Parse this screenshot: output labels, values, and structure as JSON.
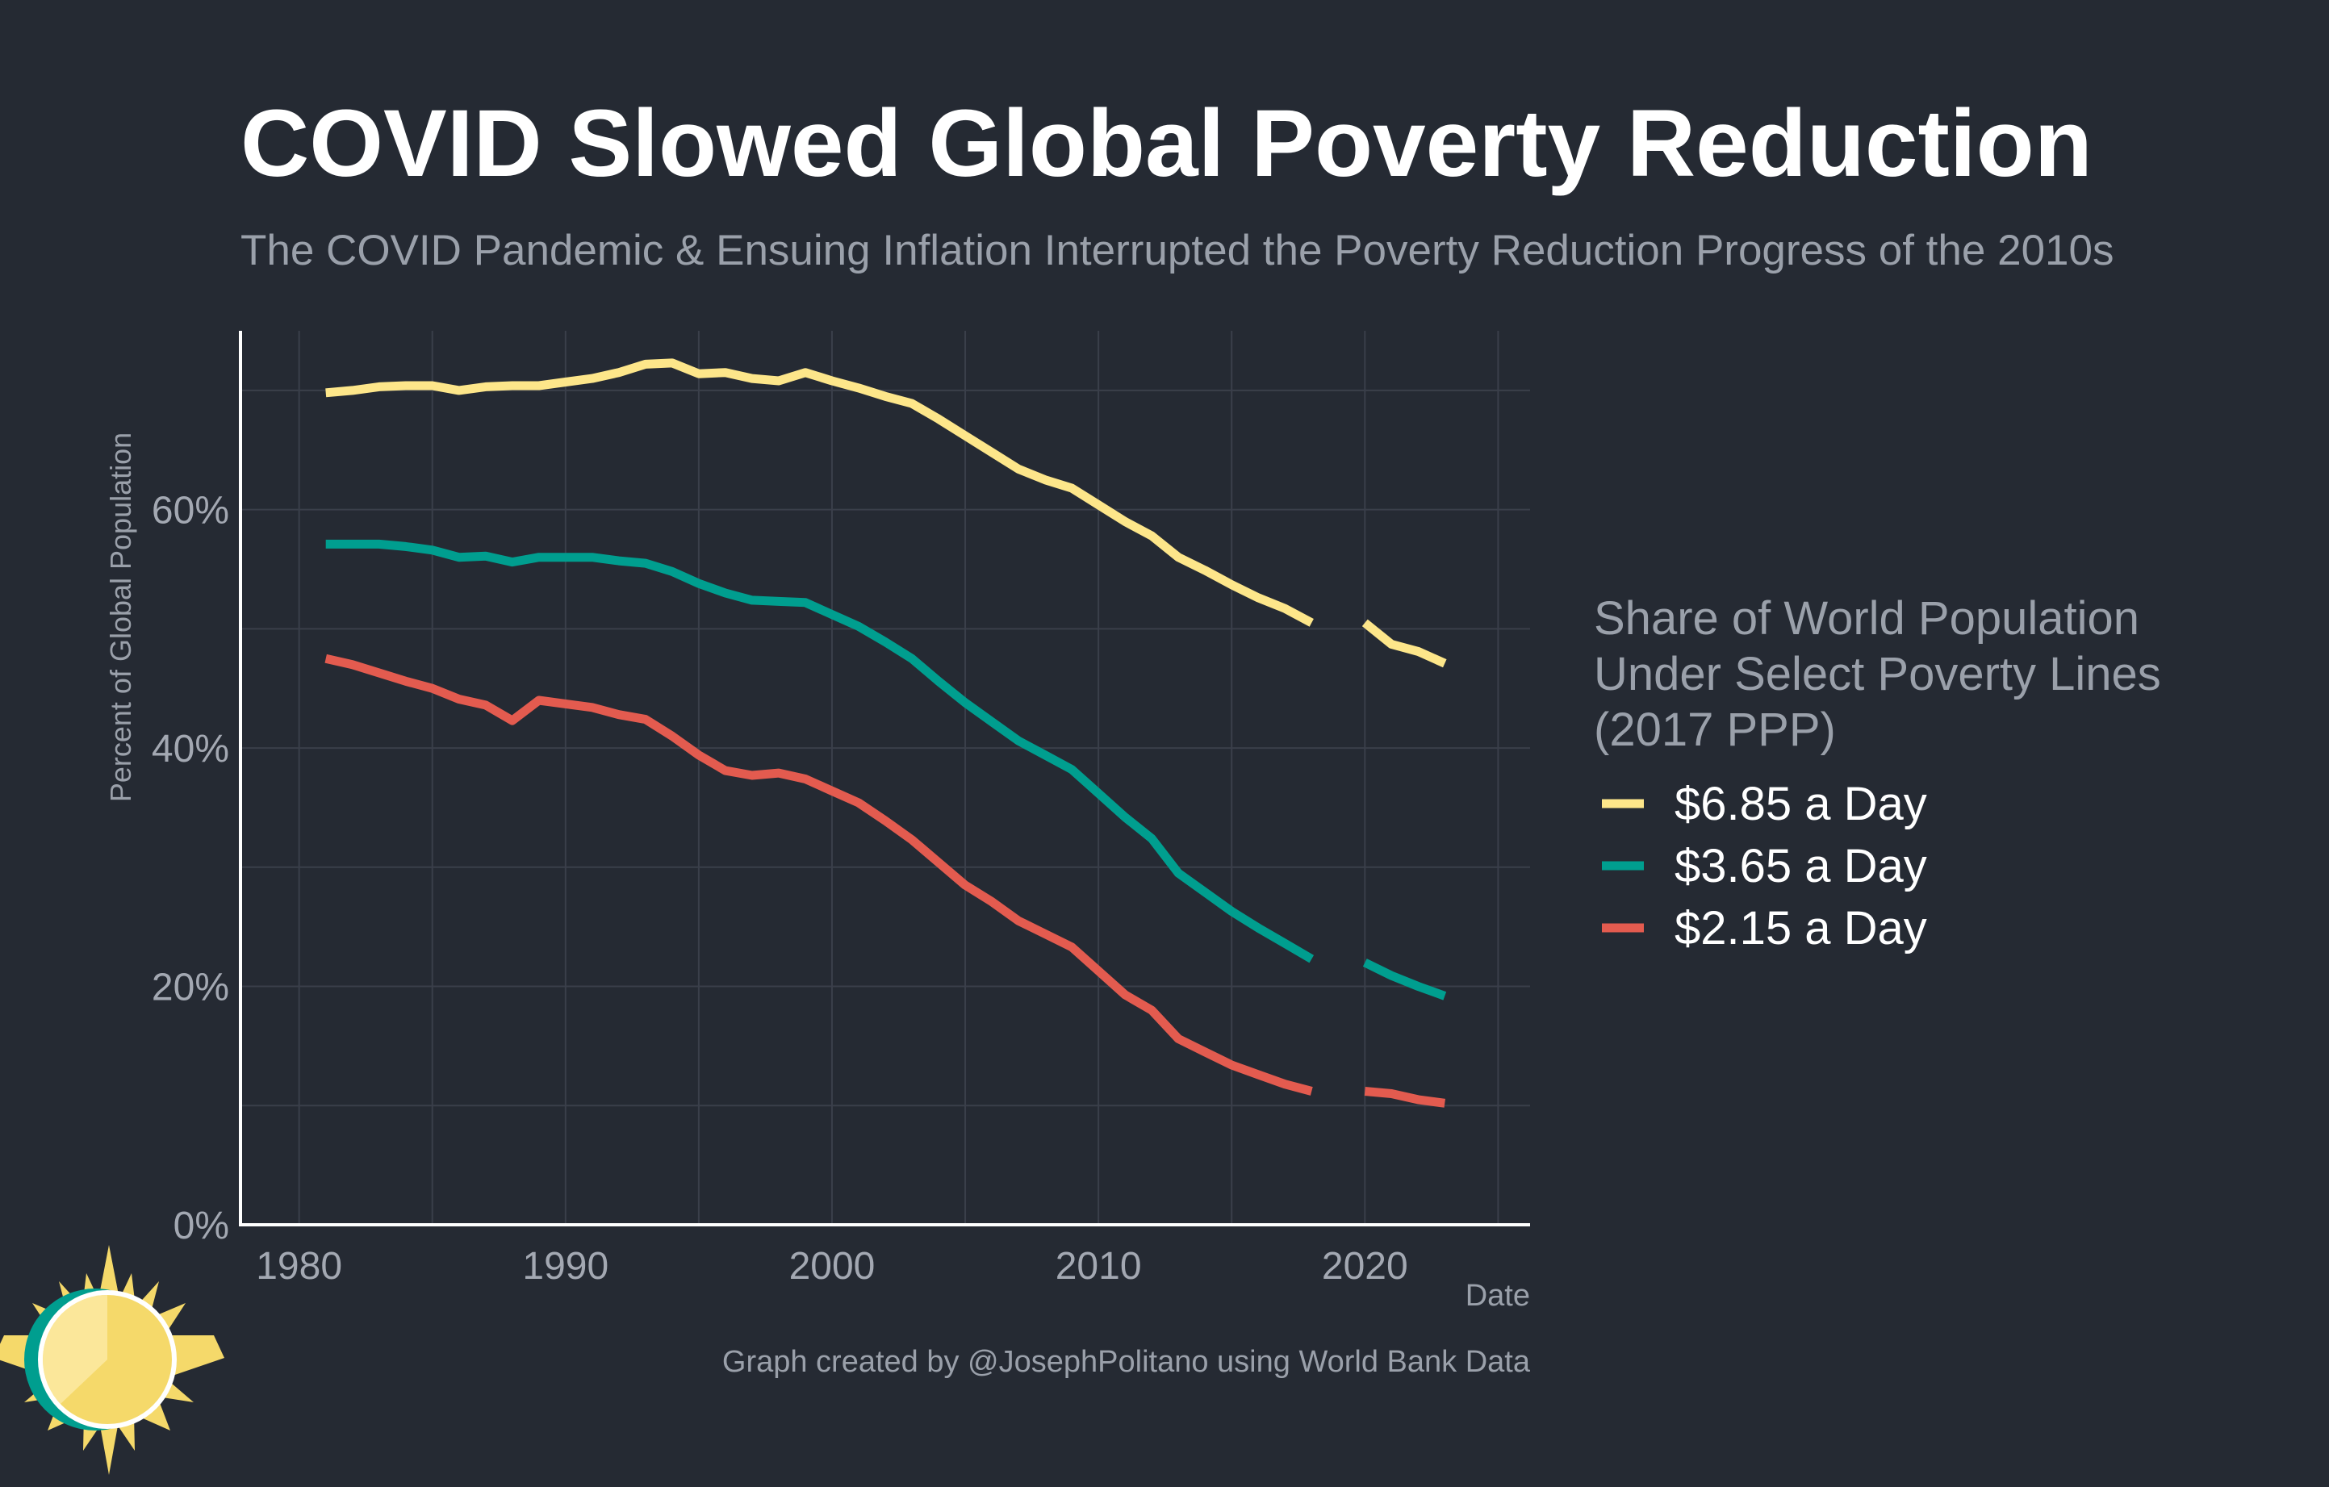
{
  "header": {
    "title": "COVID Slowed Global Poverty Reduction",
    "subtitle": "The COVID Pandemic & Ensuing Inflation Interrupted the Poverty Reduction Progress of the 2010s"
  },
  "caption": "Graph created by @JosephPolitano using World Bank Data",
  "colors": {
    "background": "#252a33",
    "grid": "#3a3f4a",
    "axis": "#ffffff",
    "yellow": "#fde68a",
    "teal": "#009e8f",
    "red": "#e35b4f"
  },
  "chart_data": {
    "type": "line",
    "title": "COVID Slowed Global Poverty Reduction",
    "subtitle": "The COVID Pandemic & Ensuing Inflation Interrupted the Poverty Reduction Progress of the 2010s",
    "xlabel": "Date",
    "ylabel": "Percent of Global Population",
    "xlim": [
      1977.8,
      2026.2
    ],
    "ylim": [
      0,
      75
    ],
    "x_ticks": [
      1980,
      1990,
      2000,
      2010,
      2020
    ],
    "x_tick_labels": [
      "1980",
      "1990",
      "2000",
      "2010",
      "2020"
    ],
    "y_ticks": [
      0,
      20,
      40,
      60
    ],
    "y_tick_labels": [
      "0%",
      "20%",
      "40%",
      "60%"
    ],
    "y_minor_gridlines": [
      10,
      30,
      50,
      70
    ],
    "x_minor_gridlines": [
      1985,
      1995,
      2005,
      2015,
      2025
    ],
    "grid": true,
    "legend": {
      "title_lines": [
        "Share of World Population",
        "Under Select Poverty Lines",
        "(2017 PPP)"
      ],
      "position": "right"
    },
    "x": [
      1981,
      1982,
      1983,
      1984,
      1985,
      1986,
      1987,
      1988,
      1989,
      1990,
      1991,
      1992,
      1993,
      1994,
      1995,
      1996,
      1997,
      1998,
      1999,
      2000,
      2001,
      2002,
      2003,
      2004,
      2005,
      2006,
      2007,
      2008,
      2009,
      2010,
      2011,
      2012,
      2013,
      2014,
      2015,
      2016,
      2017,
      2018,
      2019,
      2020,
      2021,
      2022,
      2023
    ],
    "series": [
      {
        "name": "$6.85 a Day",
        "color": "#fde68a",
        "values": [
          69.8,
          70.0,
          70.3,
          70.4,
          70.4,
          70.0,
          70.3,
          70.4,
          70.4,
          70.7,
          71.0,
          71.5,
          72.2,
          72.3,
          71.4,
          71.5,
          71.0,
          70.8,
          71.5,
          70.8,
          70.2,
          69.5,
          68.9,
          67.6,
          66.2,
          64.8,
          63.4,
          62.5,
          61.8,
          60.4,
          59.0,
          57.8,
          56.0,
          54.9,
          53.7,
          52.6,
          51.7,
          50.5,
          null,
          50.5,
          48.7,
          48.1,
          47.1
        ]
      },
      {
        "name": "$3.65 a Day",
        "color": "#009e8f",
        "values": [
          57.1,
          57.1,
          57.1,
          56.9,
          56.6,
          56.0,
          56.1,
          55.6,
          56.0,
          56.0,
          56.0,
          55.7,
          55.5,
          54.8,
          53.8,
          53.0,
          52.4,
          52.3,
          52.2,
          51.2,
          50.2,
          48.9,
          47.5,
          45.6,
          43.8,
          42.2,
          40.6,
          39.4,
          38.2,
          36.2,
          34.2,
          32.4,
          29.5,
          27.9,
          26.3,
          24.9,
          23.6,
          22.3,
          null,
          22.0,
          20.9,
          20.0,
          19.2
        ]
      },
      {
        "name": "$2.15 a Day",
        "color": "#e35b4f",
        "values": [
          47.5,
          47.0,
          46.3,
          45.6,
          45.0,
          44.1,
          43.6,
          42.3,
          44.0,
          43.7,
          43.4,
          42.8,
          42.4,
          41.0,
          39.4,
          38.1,
          37.7,
          37.9,
          37.4,
          36.4,
          35.4,
          33.9,
          32.3,
          30.4,
          28.5,
          27.1,
          25.5,
          24.4,
          23.3,
          21.3,
          19.3,
          18.0,
          15.6,
          14.5,
          13.4,
          12.6,
          11.8,
          11.2,
          null,
          11.2,
          11.0,
          10.5,
          10.2
        ]
      }
    ]
  }
}
